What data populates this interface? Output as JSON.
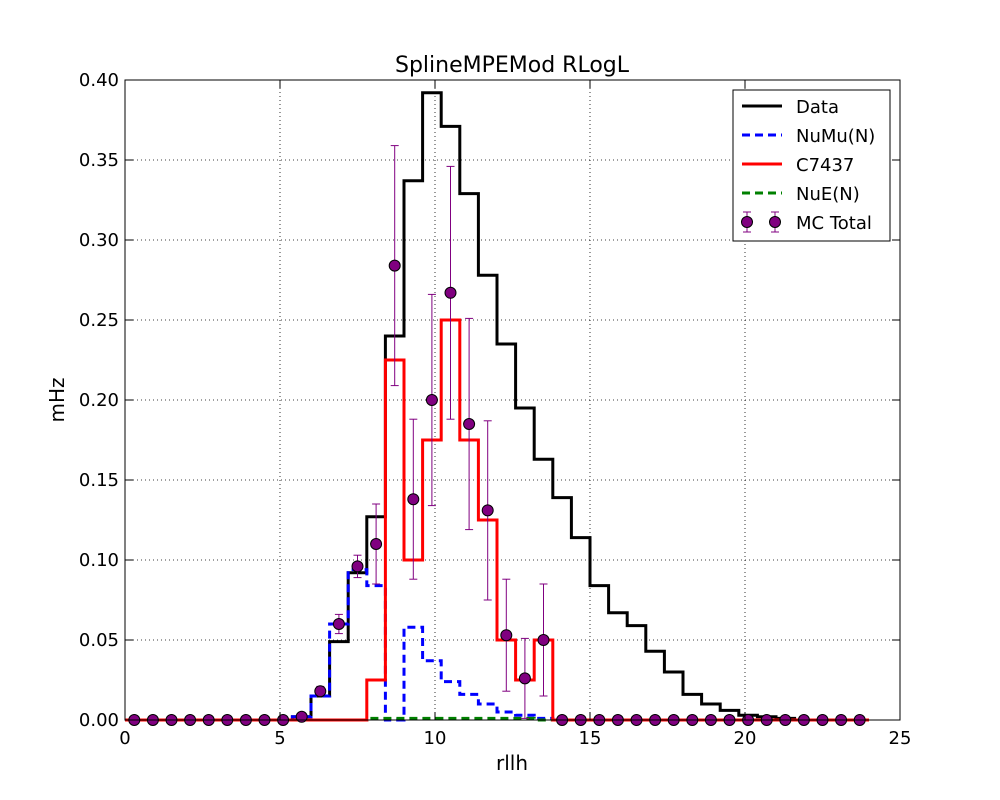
{
  "chart_data": {
    "type": "line",
    "title": "SplineMPEMod RLogL",
    "xlabel": "rllh",
    "ylabel": "mHz",
    "xlim": [
      0,
      25
    ],
    "ylim": [
      0,
      0.4
    ],
    "xticks": [
      0,
      5,
      10,
      15,
      20,
      25
    ],
    "xtick_labels": [
      "0",
      "5",
      "10",
      "15",
      "20",
      "25"
    ],
    "yticks": [
      0,
      0.05,
      0.1,
      0.15,
      0.2,
      0.25,
      0.3,
      0.35,
      0.4
    ],
    "ytick_labels": [
      "0.00",
      "0.05",
      "0.10",
      "0.15",
      "0.20",
      "0.25",
      "0.30",
      "0.35",
      "0.40"
    ],
    "grid": true,
    "legend_position": "top-right",
    "bin_edges": [
      0.0,
      0.6,
      1.2,
      1.8,
      2.4,
      3.0,
      3.6,
      4.2,
      4.8,
      5.4,
      6.0,
      6.6,
      7.2,
      7.8,
      8.4,
      9.0,
      9.6,
      10.2,
      10.8,
      11.4,
      12.0,
      12.6,
      13.2,
      13.8,
      14.4,
      15.0,
      15.6,
      16.2,
      16.8,
      17.4,
      18.0,
      18.6,
      19.2,
      19.8,
      20.4,
      21.0,
      21.6,
      22.2,
      22.8,
      23.4,
      24.0
    ],
    "series": [
      {
        "name": "Data",
        "style": "step",
        "color": "#000000",
        "dash": "solid",
        "values": [
          0,
          0,
          0,
          0,
          0,
          0,
          0,
          0,
          0,
          0.002,
          0.015,
          0.049,
          0.092,
          0.127,
          0.24,
          0.337,
          0.392,
          0.371,
          0.329,
          0.278,
          0.235,
          0.195,
          0.163,
          0.139,
          0.114,
          0.084,
          0.067,
          0.059,
          0.043,
          0.03,
          0.016,
          0.01,
          0.006,
          0.003,
          0.002,
          0.001,
          0,
          0,
          0,
          0
        ]
      },
      {
        "name": "NuMu(N)",
        "style": "step",
        "color": "#0000ff",
        "dash": "dashed",
        "values": [
          0,
          0,
          0,
          0,
          0,
          0,
          0,
          0,
          0,
          0.002,
          0.015,
          0.06,
          0.094,
          0.084,
          0,
          0.058,
          0.037,
          0.024,
          0.016,
          0.01,
          0.005,
          0.003,
          0.001,
          0,
          0,
          0,
          0,
          0,
          0,
          0,
          0,
          0,
          0,
          0,
          0,
          0,
          0,
          0,
          0,
          0
        ]
      },
      {
        "name": "C7437",
        "style": "step",
        "color": "#ff0000",
        "dash": "solid",
        "values": [
          0,
          0,
          0,
          0,
          0,
          0,
          0,
          0,
          0,
          0,
          0,
          0,
          0,
          0.025,
          0.225,
          0.1,
          0.175,
          0.25,
          0.175,
          0.125,
          0.05,
          0.025,
          0.05,
          0,
          0,
          0,
          0,
          0,
          0,
          0,
          0,
          0,
          0,
          0,
          0,
          0,
          0,
          0,
          0,
          0
        ]
      },
      {
        "name": "NuE(N)",
        "style": "step",
        "color": "#008000",
        "dash": "dashed",
        "values": [
          0,
          0,
          0,
          0,
          0,
          0,
          0,
          0,
          0,
          0,
          0,
          0,
          0,
          0.001,
          0.001,
          0.001,
          0.001,
          0.001,
          0.001,
          0.001,
          0.001,
          0.001,
          0,
          0,
          0,
          0,
          0,
          0,
          0,
          0,
          0,
          0,
          0,
          0,
          0,
          0,
          0,
          0,
          0,
          0
        ]
      }
    ],
    "points": {
      "name": "MC Total",
      "style": "errorbar",
      "color": "#800080",
      "x": [
        0.3,
        0.9,
        1.5,
        2.1,
        2.7,
        3.3,
        3.9,
        4.5,
        5.1,
        5.7,
        6.3,
        6.9,
        7.5,
        8.1,
        8.7,
        9.3,
        9.9,
        10.5,
        11.1,
        11.7,
        12.3,
        12.9,
        13.5,
        14.1,
        14.7,
        15.3,
        15.9,
        16.5,
        17.1,
        17.7,
        18.3,
        18.9,
        19.5,
        20.1,
        20.7,
        21.3,
        21.9,
        22.5,
        23.1,
        23.7
      ],
      "y": [
        0,
        0,
        0,
        0,
        0,
        0,
        0,
        0,
        0,
        0.002,
        0.018,
        0.06,
        0.096,
        0.11,
        0.284,
        0.138,
        0.2,
        0.267,
        0.185,
        0.131,
        0.053,
        0.026,
        0.05,
        0,
        0,
        0,
        0,
        0,
        0,
        0,
        0,
        0,
        0,
        0,
        0,
        0,
        0,
        0,
        0,
        0
      ],
      "err": [
        0,
        0,
        0,
        0,
        0,
        0,
        0,
        0,
        0,
        0,
        0.003,
        0.006,
        0.007,
        0.025,
        0.075,
        0.05,
        0.066,
        0.079,
        0.066,
        0.056,
        0.035,
        0.025,
        0.035,
        0,
        0,
        0,
        0,
        0,
        0,
        0,
        0,
        0,
        0,
        0,
        0,
        0,
        0,
        0,
        0,
        0
      ]
    }
  }
}
